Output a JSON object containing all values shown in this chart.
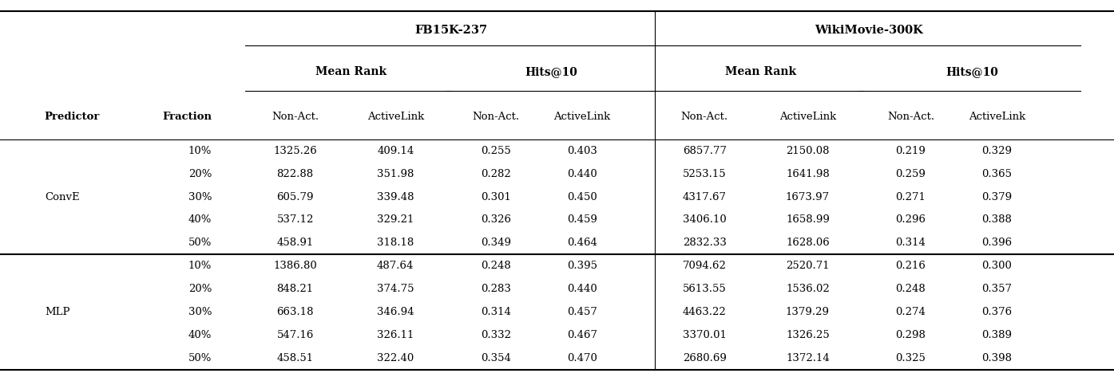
{
  "conve_data": [
    [
      "10%",
      "1325.26",
      "409.14",
      "0.255",
      "0.403",
      "6857.77",
      "2150.08",
      "0.219",
      "0.329"
    ],
    [
      "20%",
      "822.88",
      "351.98",
      "0.282",
      "0.440",
      "5253.15",
      "1641.98",
      "0.259",
      "0.365"
    ],
    [
      "30%",
      "605.79",
      "339.48",
      "0.301",
      "0.450",
      "4317.67",
      "1673.97",
      "0.271",
      "0.379"
    ],
    [
      "40%",
      "537.12",
      "329.21",
      "0.326",
      "0.459",
      "3406.10",
      "1658.99",
      "0.296",
      "0.388"
    ],
    [
      "50%",
      "458.91",
      "318.18",
      "0.349",
      "0.464",
      "2832.33",
      "1628.06",
      "0.314",
      "0.396"
    ]
  ],
  "mlp_data": [
    [
      "10%",
      "1386.80",
      "487.64",
      "0.248",
      "0.395",
      "7094.62",
      "2520.71",
      "0.216",
      "0.300"
    ],
    [
      "20%",
      "848.21",
      "374.75",
      "0.283",
      "0.440",
      "5613.55",
      "1536.02",
      "0.248",
      "0.357"
    ],
    [
      "30%",
      "663.18",
      "346.94",
      "0.314",
      "0.457",
      "4463.22",
      "1379.29",
      "0.274",
      "0.376"
    ],
    [
      "40%",
      "547.16",
      "326.11",
      "0.332",
      "0.467",
      "3370.01",
      "1326.25",
      "0.298",
      "0.389"
    ],
    [
      "50%",
      "458.51",
      "322.40",
      "0.354",
      "0.470",
      "2680.69",
      "1372.14",
      "0.325",
      "0.398"
    ]
  ],
  "bg_color": "#ffffff",
  "line_color": "#000000",
  "figsize": [
    13.95,
    4.73
  ],
  "dpi": 100
}
